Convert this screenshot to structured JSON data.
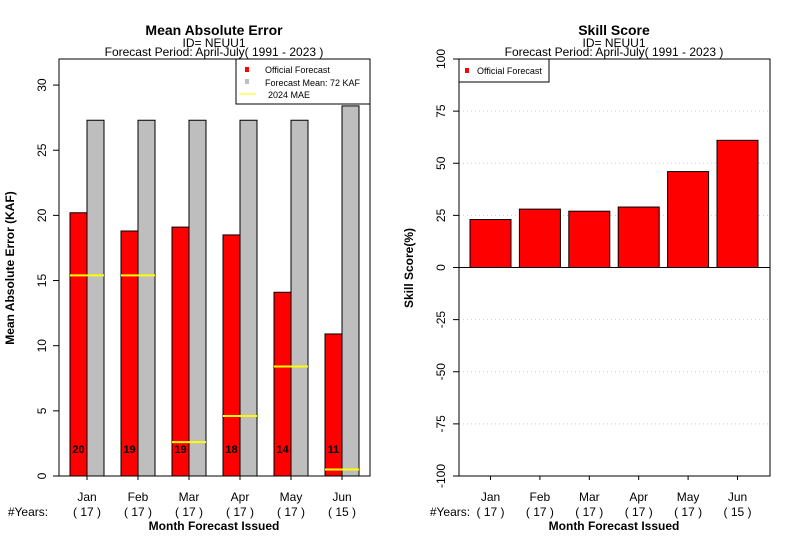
{
  "charts": [
    {
      "chart_data": {
        "type": "bar",
        "title": "Mean Absolute Error",
        "subtitle_id": "ID= NEUU1",
        "subtitle_period": "Forecast Period: April-July( 1991 - 2023 )",
        "ylabel": "Mean Absolute Error (KAF)",
        "xlabel": "Month Forecast Issued",
        "ylim": [
          0,
          32
        ],
        "yticks": [
          "0",
          "5",
          "10",
          "15",
          "20",
          "25",
          "30"
        ],
        "categories": [
          "Jan",
          "Feb",
          "Mar",
          "Apr",
          "May",
          "Jun"
        ],
        "years_label": "#Years:",
        "years": [
          "( 17 )",
          "( 17 )",
          "( 17 )",
          "( 17 )",
          "( 17 )",
          "( 15 )"
        ],
        "series": [
          {
            "name": "Official Forecast",
            "values": [
              20.2,
              18.8,
              19.1,
              18.5,
              14.1,
              10.9
            ],
            "color": "#ff0000"
          },
          {
            "name": "Forecast Mean: 72 KAF",
            "values": [
              27.3,
              27.3,
              27.3,
              27.3,
              27.3,
              28.4
            ],
            "color": "#bebebe"
          }
        ],
        "mae_2024": {
          "name": "2024  MAE",
          "values": [
            15.4,
            15.4,
            2.6,
            4.6,
            8.4,
            0.5
          ],
          "color": "#ffff00"
        },
        "bar_labels": [
          "20",
          "19",
          "19",
          "18",
          "14",
          "11"
        ],
        "legend_position": "top-right",
        "grid": false
      }
    },
    {
      "chart_data": {
        "type": "bar",
        "title": "Skill Score",
        "subtitle_id": "ID= NEUU1",
        "subtitle_period": "Forecast Period: April-July( 1991 - 2023 )",
        "ylabel": "Skill Score(%)",
        "xlabel": "Month Forecast Issued",
        "ylim": [
          -100,
          100
        ],
        "yticks": [
          "-100",
          "-75",
          "-50",
          "-25",
          "0",
          "25",
          "50",
          "75",
          "100"
        ],
        "categories": [
          "Jan",
          "Feb",
          "Mar",
          "Apr",
          "May",
          "Jun"
        ],
        "years_label": "#Years:",
        "years": [
          "( 17 )",
          "( 17 )",
          "( 17 )",
          "( 17 )",
          "( 17 )",
          "( 15 )"
        ],
        "series": [
          {
            "name": "Official Forecast",
            "values": [
              23,
              28,
              27,
              29,
              46,
              61
            ],
            "color": "#ff0000"
          }
        ],
        "legend_position": "top-left",
        "grid": true
      }
    }
  ]
}
